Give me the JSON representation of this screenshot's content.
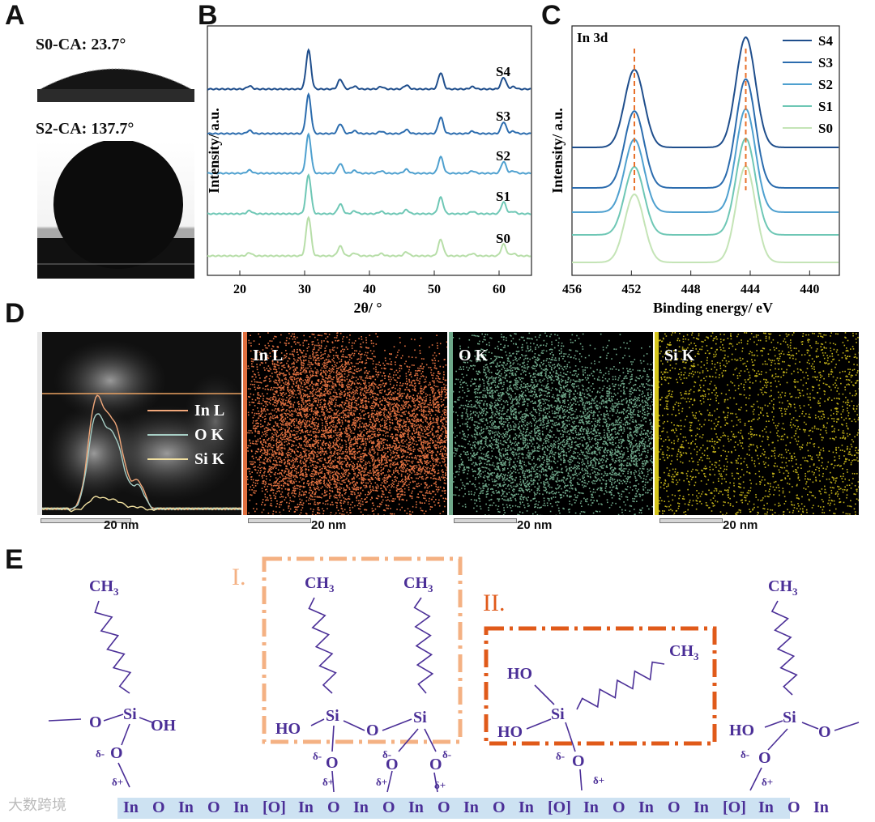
{
  "panel_labels": {
    "a": "A",
    "b": "B",
    "c": "C",
    "d": "D",
    "e": "E"
  },
  "panel_a": {
    "caption_top": "S0-CA: 23.7°",
    "caption_bottom": "S2-CA: 137.7°"
  },
  "panel_d": {
    "maps": [
      {
        "label": "",
        "color": "#ffffff"
      },
      {
        "label": "In L",
        "color": "#e07040"
      },
      {
        "label": "O K",
        "color": "#6fa88a"
      },
      {
        "label": "Si K",
        "color": "#d4c41c"
      }
    ],
    "legend": [
      {
        "label": "In L",
        "color": "#f0a77a"
      },
      {
        "label": "O K",
        "color": "#a8cfc6"
      },
      {
        "label": "Si K",
        "color": "#f1e0a0"
      }
    ],
    "scale_label": "20 nm"
  },
  "panel_e": {
    "box1_label": "I.",
    "box2_label": "II.",
    "ch3": "CH",
    "sub3": "3",
    "si": "Si",
    "o": "O",
    "oh": "OH",
    "ho": "HO",
    "delta_minus": "δ-",
    "delta_plus": "δ+",
    "surface": [
      "In",
      "O",
      "In",
      "O",
      "In",
      "[O]",
      "In",
      "O",
      "In",
      "O",
      "In",
      "O",
      "In",
      "O",
      "In",
      "[O]",
      "In",
      "O",
      "In",
      "O",
      "In",
      "[O]",
      "In",
      "O",
      "In"
    ]
  },
  "watermark": "大数跨境",
  "chart_data": [
    {
      "id": "B",
      "type": "line",
      "title": "",
      "xlabel": "2θ/ °",
      "ylabel": "Intensity/ a.u.",
      "xlim": [
        15,
        65
      ],
      "xticks": [
        20,
        30,
        40,
        50,
        60
      ],
      "peaks": [
        {
          "x": 21.5,
          "h": 0.08
        },
        {
          "x": 30.6,
          "h": 1.0
        },
        {
          "x": 35.5,
          "h": 0.25
        },
        {
          "x": 37.7,
          "h": 0.07
        },
        {
          "x": 41.8,
          "h": 0.06
        },
        {
          "x": 45.7,
          "h": 0.1
        },
        {
          "x": 51.0,
          "h": 0.42
        },
        {
          "x": 55.9,
          "h": 0.06
        },
        {
          "x": 60.7,
          "h": 0.3
        },
        {
          "x": 62.2,
          "h": 0.06
        }
      ],
      "series": [
        {
          "name": "S4",
          "color": "#1f4e8c"
        },
        {
          "name": "S3",
          "color": "#2b6cae"
        },
        {
          "name": "S2",
          "color": "#4ea0cf"
        },
        {
          "name": "S1",
          "color": "#6ec7b5"
        },
        {
          "name": "S0",
          "color": "#b7dea8"
        }
      ]
    },
    {
      "id": "C",
      "type": "line",
      "title": "In 3d",
      "xlabel": "Binding energy/ eV",
      "ylabel": "Intensity/ a.u.",
      "xlim": [
        456,
        438
      ],
      "xticks": [
        456,
        452,
        448,
        444,
        440
      ],
      "peaks": [
        {
          "x": 451.8,
          "h": 0.6
        },
        {
          "x": 444.3,
          "h": 0.85
        }
      ],
      "reference_lines": [
        451.8,
        444.3
      ],
      "series": [
        {
          "name": "S4",
          "color": "#1f4e8c"
        },
        {
          "name": "S3",
          "color": "#2b6cae"
        },
        {
          "name": "S2",
          "color": "#4ea0cf"
        },
        {
          "name": "S1",
          "color": "#6ec7b5"
        },
        {
          "name": "S0",
          "color": "#c4e4b6"
        }
      ]
    }
  ]
}
